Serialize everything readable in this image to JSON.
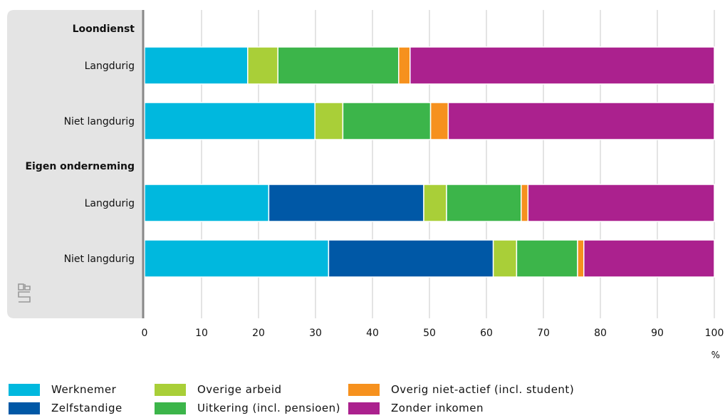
{
  "chart_data": {
    "type": "bar",
    "orientation": "horizontal",
    "stacked": true,
    "groups": [
      {
        "label": "Loondienst",
        "rows": [
          {
            "label": "Langdurig",
            "values": [
              18.1,
              0,
              5.3,
              21.2,
              2.0,
              53.4
            ]
          },
          {
            "label": "Niet langdurig",
            "values": [
              29.9,
              0,
              4.9,
              15.4,
              3.1,
              46.7
            ]
          }
        ]
      },
      {
        "label": "Eigen onderneming",
        "rows": [
          {
            "label": "Langdurig",
            "values": [
              21.8,
              27.2,
              4.0,
              13.1,
              1.2,
              32.7
            ]
          },
          {
            "label": "Niet langdurig",
            "values": [
              32.3,
              28.9,
              4.1,
              10.7,
              1.1,
              22.9
            ]
          }
        ]
      }
    ],
    "series": [
      {
        "name": "Werknemer",
        "color": "#00b8de"
      },
      {
        "name": "Zelfstandige",
        "color": "#0058a6"
      },
      {
        "name": "Overige arbeid",
        "color": "#a9cf38"
      },
      {
        "name": "Uitkering (incl. pensioen)",
        "color": "#3cb54a"
      },
      {
        "name": "Overig niet-actief (incl. student)",
        "color": "#f6911e"
      },
      {
        "name": "Zonder inkomen",
        "color": "#ab218e"
      }
    ],
    "xlim": [
      0,
      100
    ],
    "xticks": [
      "0",
      "10",
      "20",
      "30",
      "40",
      "50",
      "60",
      "70",
      "80",
      "90",
      "100"
    ],
    "xunit": "%",
    "grid": true,
    "legend_position": "bottom"
  }
}
